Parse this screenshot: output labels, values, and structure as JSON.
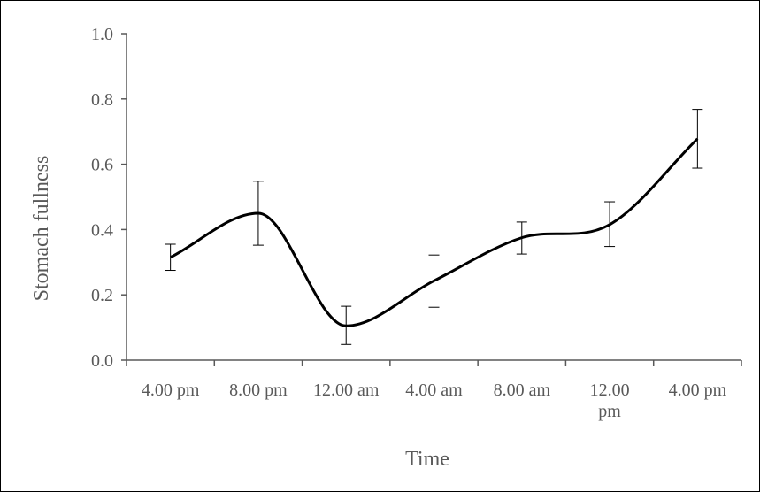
{
  "chart_data": {
    "type": "line",
    "title": "",
    "xlabel": "Time",
    "ylabel": "Stomach fullness",
    "categories": [
      "4.00 pm",
      "8.00 pm",
      "12.00 am",
      "4.00 am",
      "8.00 am",
      "12.00 pm",
      "4.00 pm"
    ],
    "category_label_lines": [
      [
        "4.00 pm"
      ],
      [
        "8.00 pm"
      ],
      [
        "12.00 am"
      ],
      [
        "4.00 am"
      ],
      [
        "8.00 am"
      ],
      [
        "12.00",
        "pm"
      ],
      [
        "4.00 pm"
      ]
    ],
    "x_ticks_between_categories": true,
    "y_ticks": [
      "0.0",
      "0.2",
      "0.4",
      "0.6",
      "0.8",
      "1.0"
    ],
    "ylim": [
      0,
      1.0
    ],
    "grid": false,
    "legend": "none",
    "smooth": true,
    "series": [
      {
        "values": [
          0.315,
          0.45,
          0.105,
          0.243,
          0.375,
          0.415,
          0.678
        ],
        "error_bars": [
          [
            0.275,
            0.355
          ],
          [
            0.352,
            0.548
          ],
          [
            0.048,
            0.165
          ],
          [
            0.162,
            0.322
          ],
          [
            0.325,
            0.423
          ],
          [
            0.348,
            0.485
          ],
          [
            0.588,
            0.768
          ]
        ],
        "color": "#000000"
      }
    ],
    "colors": {
      "line": "#000000",
      "axis": "#595959",
      "text": "#595959"
    }
  }
}
